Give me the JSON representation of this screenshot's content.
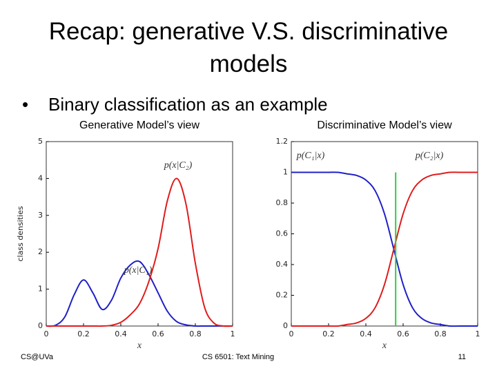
{
  "slide": {
    "title_lines": [
      "Recap: generative V.S. discriminative",
      "models"
    ],
    "bullet": "Binary classification as an example",
    "footer_left": "CS@UVa",
    "footer_center": "CS 6501: Text Mining",
    "footer_right": "11"
  },
  "chart_data": [
    {
      "type": "line",
      "title": "Generative Model’s view",
      "xlabel": "x",
      "ylabel": "class densities",
      "x": [
        0,
        0.05,
        0.1,
        0.15,
        0.2,
        0.25,
        0.3,
        0.35,
        0.4,
        0.45,
        0.5,
        0.55,
        0.6,
        0.65,
        0.7,
        0.75,
        0.8,
        0.85,
        0.9,
        0.95,
        1
      ],
      "series": [
        {
          "name": "p(x|C₁)",
          "color": "#1f1fc8",
          "values": [
            0,
            0.02,
            0.25,
            0.85,
            1.25,
            0.9,
            0.45,
            0.7,
            1.3,
            1.65,
            1.75,
            1.4,
            0.9,
            0.4,
            0.12,
            0.03,
            0,
            0,
            0,
            0,
            0
          ]
        },
        {
          "name": "p(x|C₂)",
          "color": "#e01b1b",
          "values": [
            0,
            0,
            0,
            0,
            0,
            0,
            0,
            0.02,
            0.1,
            0.3,
            0.6,
            1.2,
            2.1,
            3.4,
            4,
            3.3,
            1.7,
            0.5,
            0.08,
            0,
            0
          ]
        }
      ],
      "xlim": [
        0,
        1
      ],
      "xticks": [
        0,
        0.2,
        0.4,
        0.6,
        0.8,
        1
      ],
      "ylim": [
        0,
        5
      ],
      "yticks": [
        0,
        1,
        2,
        3,
        4,
        5
      ]
    },
    {
      "type": "line",
      "title": "Discriminative Model’s view",
      "xlabel": "x",
      "x": [
        0,
        0.05,
        0.1,
        0.15,
        0.2,
        0.25,
        0.3,
        0.35,
        0.4,
        0.45,
        0.5,
        0.55,
        0.6,
        0.65,
        0.7,
        0.75,
        0.8,
        0.85,
        0.9,
        0.95,
        1
      ],
      "series": [
        {
          "name": "p(C₁|x)",
          "color": "#1f1fc8",
          "values": [
            1,
            1,
            1,
            1,
            1,
            1,
            0.99,
            0.98,
            0.95,
            0.88,
            0.73,
            0.5,
            0.27,
            0.12,
            0.05,
            0.02,
            0.01,
            0,
            0,
            0,
            0
          ]
        },
        {
          "name": "p(C₂|x)",
          "color": "#e01b1b",
          "values": [
            0,
            0,
            0,
            0,
            0,
            0,
            0.01,
            0.02,
            0.05,
            0.12,
            0.27,
            0.5,
            0.73,
            0.88,
            0.95,
            0.98,
            0.99,
            1,
            1,
            1,
            1
          ]
        }
      ],
      "vline": {
        "x": 0.56,
        "y": [
          0,
          1
        ],
        "color": "#2ecc40"
      },
      "xlim": [
        0,
        1
      ],
      "xticks": [
        0,
        0.2,
        0.4,
        0.6,
        0.8,
        1
      ],
      "ylim": [
        0,
        1.2
      ],
      "yticks": [
        0,
        0.2,
        0.4,
        0.6,
        0.8,
        1,
        1.2
      ]
    }
  ]
}
